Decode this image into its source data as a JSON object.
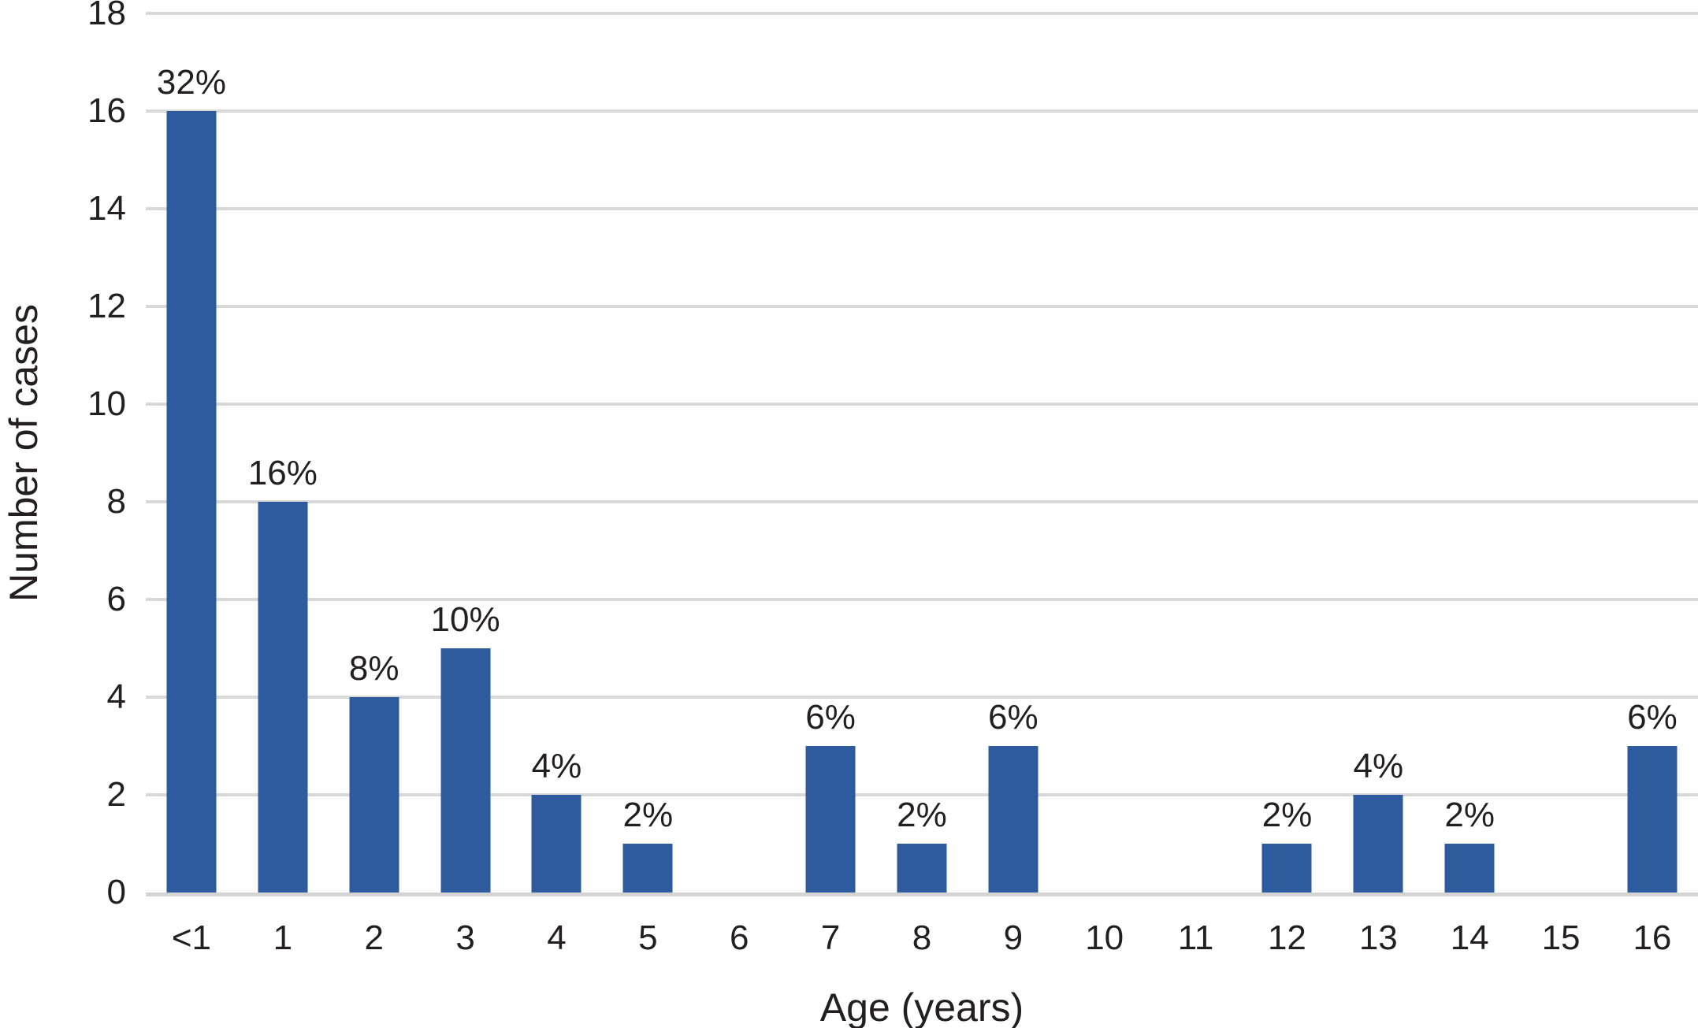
{
  "colors": {
    "bar": "#2e5b9d",
    "gridline": "#d9d9d9",
    "axis_line": "#d4d4d4",
    "text": "#231f20",
    "background": "#ffffff"
  },
  "chart_data": {
    "type": "bar",
    "title": "",
    "xlabel": "Age (years)",
    "ylabel": "Number of cases",
    "categories": [
      "<1",
      "1",
      "2",
      "3",
      "4",
      "5",
      "6",
      "7",
      "8",
      "9",
      "10",
      "11",
      "12",
      "13",
      "14",
      "15",
      "16"
    ],
    "values": [
      16,
      8,
      4,
      5,
      2,
      1,
      0,
      3,
      1,
      3,
      0,
      0,
      1,
      2,
      1,
      0,
      3
    ],
    "bar_labels": [
      "32%",
      "16%",
      "8%",
      "10%",
      "4%",
      "2%",
      "",
      "6%",
      "2%",
      "6%",
      "",
      "",
      "2%",
      "4%",
      "2%",
      "",
      "6%"
    ],
    "ylim": [
      0,
      18
    ],
    "yticks": [
      0,
      2,
      4,
      6,
      8,
      10,
      12,
      14,
      16,
      18
    ],
    "grid": "horizontal",
    "legend": "none"
  }
}
